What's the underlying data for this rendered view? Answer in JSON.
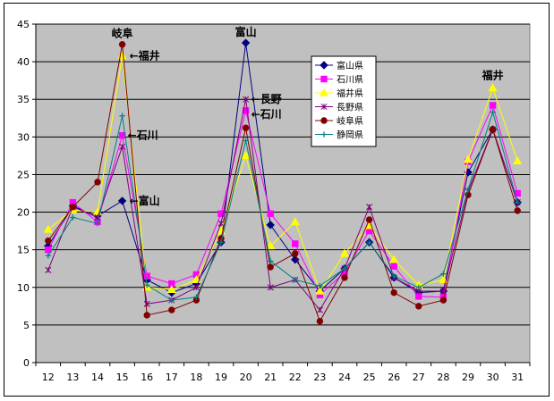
{
  "chart_data": {
    "type": "line",
    "x": [
      "12",
      "13",
      "14",
      "15",
      "16",
      "17",
      "18",
      "19",
      "20",
      "21",
      "22",
      "23",
      "24",
      "25",
      "26",
      "27",
      "28",
      "29",
      "30",
      "31"
    ],
    "ylim": [
      0,
      45
    ],
    "yticks": [
      "0",
      "5",
      "10",
      "15",
      "20",
      "25",
      "30",
      "35",
      "40",
      "45"
    ],
    "grid": true,
    "legend_position": "right",
    "plot_background": "#C0C0C0",
    "series": [
      {
        "name": "富山県",
        "color": "#000080",
        "marker": "diamond",
        "values": [
          15.5,
          20.8,
          19.5,
          21.5,
          11.0,
          9.3,
          10.5,
          16.0,
          42.5,
          18.3,
          13.7,
          9.5,
          12.5,
          16.0,
          11.3,
          9.3,
          9.5,
          25.3,
          31.0,
          21.3
        ]
      },
      {
        "name": "石川県",
        "color": "#FF00FF",
        "marker": "square",
        "values": [
          15.0,
          21.3,
          18.7,
          30.2,
          11.5,
          10.5,
          11.7,
          19.8,
          33.5,
          19.8,
          15.8,
          9.0,
          12.0,
          17.5,
          12.8,
          8.8,
          8.7,
          26.7,
          34.2,
          22.5
        ]
      },
      {
        "name": "福井県",
        "color": "#FFFF00",
        "marker": "triangle",
        "values": [
          17.7,
          20.3,
          20.0,
          40.8,
          10.0,
          9.7,
          11.0,
          17.5,
          27.5,
          15.5,
          18.7,
          9.5,
          14.5,
          18.2,
          13.7,
          10.3,
          11.0,
          27.0,
          36.5,
          26.8
        ]
      },
      {
        "name": "長野県",
        "color": "#800080",
        "marker": "x",
        "values": [
          12.3,
          20.7,
          19.3,
          28.7,
          7.8,
          8.3,
          10.0,
          18.5,
          35.0,
          10.0,
          11.0,
          7.0,
          12.5,
          20.7,
          11.3,
          9.5,
          9.5,
          22.8,
          31.0,
          21.3
        ]
      },
      {
        "name": "岐阜県",
        "color": "#800000",
        "marker": "circle",
        "values": [
          16.2,
          20.7,
          24.0,
          42.3,
          6.3,
          7.0,
          8.3,
          16.5,
          31.2,
          12.7,
          14.5,
          5.5,
          11.3,
          19.0,
          9.3,
          7.5,
          8.3,
          22.3,
          31.0,
          20.2
        ]
      },
      {
        "name": "静岡県",
        "color": "#008080",
        "marker": "plus",
        "values": [
          14.2,
          19.3,
          18.5,
          32.8,
          10.3,
          8.3,
          8.7,
          16.0,
          29.5,
          13.5,
          11.0,
          10.2,
          12.5,
          16.0,
          11.5,
          10.0,
          11.8,
          23.0,
          33.3,
          21.3
        ]
      }
    ],
    "annotations": [
      {
        "text": "岐阜",
        "x": "15",
        "y": 42.3
      },
      {
        "text": "←福井",
        "x": "15",
        "y": 40.8
      },
      {
        "text": "←石川",
        "x": "15",
        "y": 30.2
      },
      {
        "text": "←富山",
        "x": "15",
        "y": 21.5
      },
      {
        "text": "富山",
        "x": "20",
        "y": 42.5
      },
      {
        "text": "←長野",
        "x": "20",
        "y": 35.0
      },
      {
        "text": "←石川",
        "x": "20",
        "y": 33.5
      },
      {
        "text": "福井",
        "x": "30",
        "y": 36.5
      }
    ]
  }
}
